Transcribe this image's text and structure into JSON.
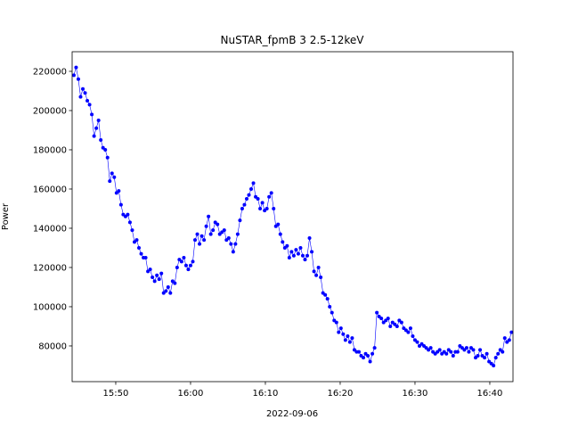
{
  "chart_data": {
    "type": "line",
    "title": "NuSTAR_fpmB 3 2.5-12keV",
    "xlabel": "2022-09-06",
    "ylabel": "Power",
    "x": [
      944.4,
      944.7,
      945,
      945.3,
      945.6,
      945.9,
      946.2,
      946.5,
      946.8,
      947.1,
      947.4,
      947.7,
      948,
      948.3,
      948.6,
      948.9,
      949.2,
      949.5,
      949.8,
      950.1,
      950.4,
      950.7,
      951,
      951.3,
      951.6,
      951.9,
      952.2,
      952.5,
      952.8,
      953.1,
      953.4,
      953.7,
      954,
      954.3,
      954.6,
      954.9,
      955.2,
      955.5,
      955.8,
      956.1,
      956.4,
      956.7,
      957,
      957.3,
      957.6,
      957.9,
      958.2,
      958.5,
      958.8,
      959.1,
      959.4,
      959.7,
      960,
      960.3,
      960.6,
      960.9,
      961.2,
      961.5,
      961.8,
      962.1,
      962.4,
      962.7,
      963,
      963.3,
      963.6,
      963.9,
      964.2,
      964.5,
      964.8,
      965.1,
      965.4,
      965.7,
      966,
      966.3,
      966.6,
      966.9,
      967.2,
      967.5,
      967.8,
      968.1,
      968.4,
      968.7,
      969,
      969.3,
      969.6,
      969.9,
      970.2,
      970.5,
      970.8,
      971.1,
      971.4,
      971.7,
      972,
      972.3,
      972.6,
      972.9,
      973.2,
      973.5,
      973.8,
      974.1,
      974.4,
      974.7,
      975,
      975.3,
      975.6,
      975.9,
      976.2,
      976.5,
      976.8,
      977.1,
      977.4,
      977.7,
      978,
      978.3,
      978.6,
      978.9,
      979.2,
      979.5,
      979.8,
      980.1,
      980.4,
      980.7,
      981,
      981.3,
      981.6,
      981.9,
      982.2,
      982.5,
      982.8,
      983.1,
      983.4,
      983.7,
      984,
      984.3,
      984.6,
      984.9,
      985.2,
      985.5,
      985.8,
      986.1,
      986.4,
      986.7,
      987,
      987.3,
      987.6,
      987.9,
      988.2,
      988.5,
      988.8,
      989.1,
      989.4,
      989.7,
      990,
      990.3,
      990.6,
      990.9,
      991.2,
      991.5,
      991.8,
      992.1,
      992.4,
      992.7,
      993,
      993.3,
      993.6,
      993.9,
      994.2,
      994.5,
      994.8,
      995.1,
      995.4,
      995.7,
      996,
      996.3,
      996.6,
      996.9,
      997.2,
      997.5,
      997.8,
      998.1,
      998.4,
      998.7,
      999,
      999.3,
      999.6,
      999.9,
      1000.2,
      1000.5,
      1000.8,
      1001.1,
      1001.4,
      1001.7,
      1002,
      1002.3,
      1002.6,
      1002.9
    ],
    "series": [
      {
        "color": "#0000ff",
        "values": [
          218000,
          222000,
          216000,
          207000,
          211000,
          209000,
          205000,
          203000,
          198000,
          187000,
          191000,
          195000,
          185000,
          181000,
          180000,
          176000,
          164000,
          168000,
          166000,
          158000,
          159000,
          152000,
          147000,
          146000,
          147000,
          143000,
          139000,
          133000,
          134000,
          130000,
          127000,
          125000,
          125000,
          118000,
          119000,
          115000,
          113000,
          116000,
          114000,
          117000,
          107000,
          108000,
          110000,
          107000,
          113000,
          112000,
          120000,
          124000,
          123000,
          125000,
          121000,
          119000,
          121000,
          123000,
          134000,
          137000,
          132000,
          136000,
          134000,
          141000,
          146000,
          137000,
          139000,
          143000,
          142000,
          137000,
          138000,
          139000,
          134000,
          135000,
          132000,
          128000,
          132000,
          137000,
          144000,
          150000,
          152000,
          155000,
          157000,
          160000,
          163000,
          156000,
          155000,
          150000,
          153000,
          149000,
          150000,
          156000,
          158000,
          150000,
          141000,
          142000,
          137000,
          133000,
          130000,
          131000,
          125000,
          128000,
          126000,
          129000,
          127000,
          130000,
          126000,
          124000,
          126000,
          135000,
          128000,
          118000,
          116000,
          120000,
          115000,
          107000,
          106000,
          104000,
          100000,
          97000,
          93000,
          92000,
          87000,
          89000,
          86000,
          83000,
          85000,
          82000,
          84000,
          78000,
          77000,
          77000,
          75000,
          74000,
          76000,
          75000,
          72000,
          76000,
          79000,
          97000,
          95000,
          94000,
          92000,
          93000,
          94000,
          90000,
          92000,
          91000,
          90000,
          93000,
          92000,
          89000,
          88000,
          87000,
          89000,
          85000,
          83000,
          82000,
          80000,
          81000,
          80000,
          79000,
          78000,
          79000,
          77000,
          76000,
          77000,
          78000,
          76000,
          77000,
          76000,
          78000,
          77000,
          75000,
          77000,
          77000,
          80000,
          79000,
          78000,
          79000,
          77000,
          79000,
          78000,
          74000,
          75000,
          78000,
          75000,
          74000,
          76000,
          72000,
          71000,
          70000,
          74000,
          76000,
          78000,
          77000,
          84000,
          82000,
          83000,
          87000
        ]
      }
    ],
    "xlim": [
      944.17,
      1003.1
    ],
    "xticks": [
      {
        "value": 950,
        "label": "15:50"
      },
      {
        "value": 960,
        "label": "16:00"
      },
      {
        "value": 970,
        "label": "16:10"
      },
      {
        "value": 980,
        "label": "16:20"
      },
      {
        "value": 990,
        "label": "16:30"
      },
      {
        "value": 1000,
        "label": "16:40"
      }
    ],
    "ylim": [
      61800,
      230000
    ],
    "yticks": [
      80000,
      100000,
      120000,
      140000,
      160000,
      180000,
      200000,
      220000
    ]
  }
}
